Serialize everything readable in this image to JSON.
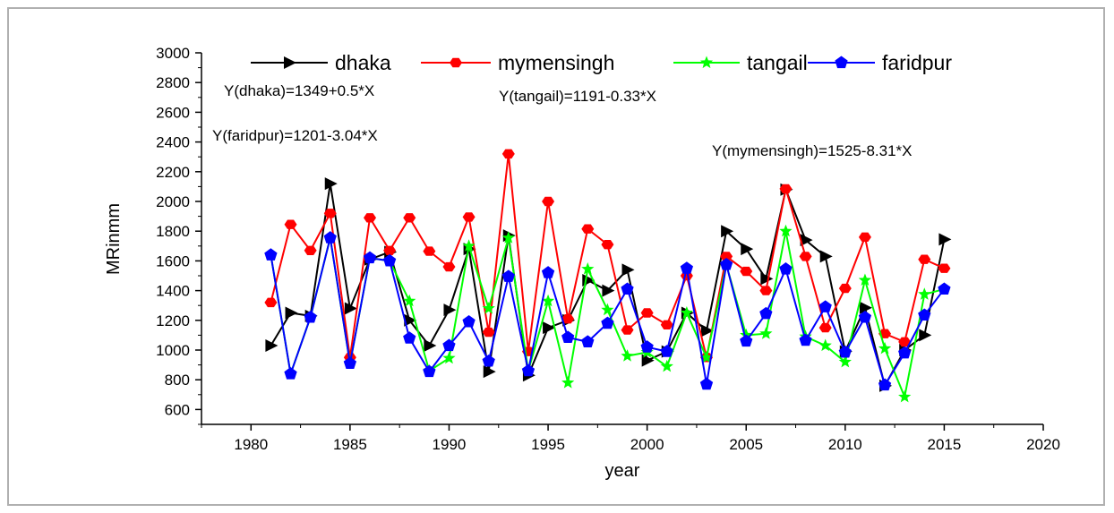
{
  "chart_data": {
    "type": "line",
    "title": "",
    "xlabel": "year",
    "ylabel": "MRinmm",
    "xlim": [
      1977.5,
      2020
    ],
    "ylim": [
      500,
      3000
    ],
    "xticks": [
      1980,
      1985,
      1990,
      1995,
      2000,
      2005,
      2010,
      2015,
      2020
    ],
    "yticks": [
      600,
      800,
      1000,
      1200,
      1400,
      1600,
      1800,
      2000,
      2200,
      2400,
      2600,
      2800,
      3000
    ],
    "grid": false,
    "legend_position": "top",
    "x": [
      1981,
      1982,
      1983,
      1984,
      1985,
      1986,
      1987,
      1988,
      1989,
      1990,
      1991,
      1992,
      1993,
      1994,
      1995,
      1996,
      1997,
      1998,
      1999,
      2000,
      2001,
      2002,
      2003,
      2004,
      2005,
      2006,
      2007,
      2008,
      2009,
      2010,
      2011,
      2012,
      2013,
      2014,
      2015
    ],
    "series": [
      {
        "name": "dhaka",
        "color": "#000000",
        "marker": "triangle-right",
        "values": [
          1030,
          1250,
          1230,
          2120,
          1280,
          1610,
          1660,
          1200,
          1030,
          1270,
          1680,
          855,
          1770,
          830,
          1150,
          1200,
          1470,
          1400,
          1540,
          930,
          990,
          1250,
          1130,
          1800,
          1680,
          1480,
          2080,
          1740,
          1630,
          990,
          1285,
          760,
          1000,
          1100,
          1745
        ]
      },
      {
        "name": "mymensingh",
        "color": "#ff0000",
        "marker": "hexagon",
        "values": [
          1320,
          1845,
          1670,
          1920,
          950,
          1890,
          1670,
          1890,
          1665,
          1560,
          1895,
          1120,
          2320,
          990,
          2000,
          1210,
          1815,
          1710,
          1135,
          1250,
          1170,
          1500,
          950,
          1630,
          1530,
          1400,
          2085,
          1630,
          1150,
          1415,
          1760,
          1110,
          1055,
          1610,
          1550
        ]
      },
      {
        "name": "tangail",
        "color": "#00ff00",
        "marker": "star",
        "values": [
          1640,
          840,
          1220,
          1755,
          910,
          1620,
          1600,
          1330,
          860,
          945,
          1700,
          1280,
          1755,
          860,
          1330,
          780,
          1545,
          1270,
          960,
          985,
          890,
          1250,
          950,
          1575,
          1100,
          1110,
          1800,
          1090,
          1030,
          920,
          1470,
          1010,
          685,
          1375,
          1410
        ]
      },
      {
        "name": "faridpur",
        "color": "#0000ff",
        "marker": "pentagon",
        "values": [
          1640,
          840,
          1220,
          1755,
          910,
          1620,
          1600,
          1080,
          855,
          1030,
          1190,
          925,
          1495,
          860,
          1520,
          1085,
          1055,
          1180,
          1410,
          1020,
          990,
          1550,
          770,
          1575,
          1060,
          1245,
          1545,
          1065,
          1290,
          985,
          1220,
          765,
          980,
          1235,
          1410
        ]
      }
    ],
    "annotations": [
      "Y(dhaka)=1349+0.5*X",
      "Y(tangail)=1191-0.33*X",
      "Y(faridpur)=1201-3.04*X",
      "Y(mymensingh)=1525-8.31*X"
    ]
  }
}
